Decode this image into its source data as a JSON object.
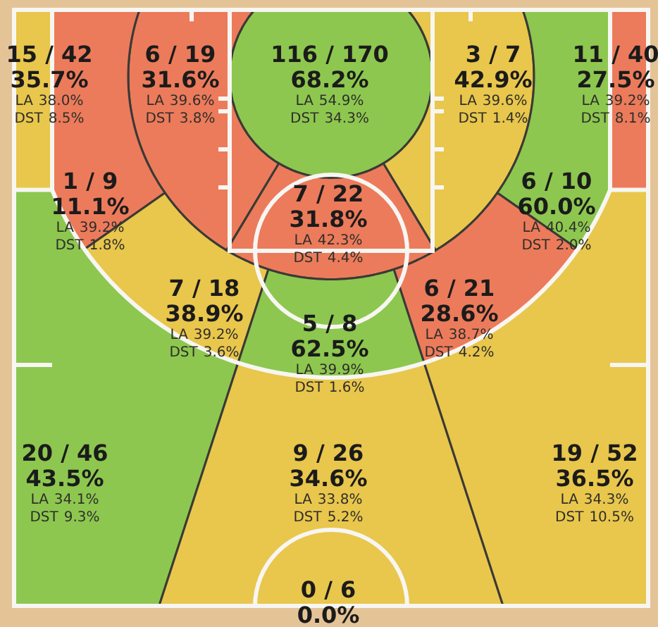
{
  "chart_data": {
    "type": "other",
    "categories": [
      "15 / 42",
      "6 / 19",
      "116 / 170",
      "3 / 7",
      "11 / 40",
      "1 / 9",
      "6 / 10",
      "7 / 22",
      "7 / 18",
      "6 / 21",
      "5 / 8",
      "20 / 46",
      "9 / 26",
      "19 / 52",
      "0 / 6"
    ],
    "series": [
      {
        "colors": [
          "#e9c64c",
          "#ec7b5b",
          "#8dc74f",
          "#e9c64c",
          "#ec7b5b",
          "#ec7b5b",
          "#8dc74f",
          "#ec7b5b",
          "#e9c64c",
          "#ec7b5b",
          "#8dc74f",
          "#8dc74f",
          "#e9c64c",
          "#e9c64c",
          null
        ],
        "values": [
          35.7,
          31.6,
          68.2,
          42.9,
          27.5,
          11.1,
          60.0,
          31.8,
          38.9,
          28.6,
          62.5,
          43.5,
          34.6,
          36.5,
          0.0
        ],
        "value_labels": [
          "35.7%",
          "31.6%",
          "68.2%",
          "42.9%",
          "27.5%",
          "11.1%",
          "60.0%",
          "31.8%",
          "38.9%",
          "28.6%",
          "62.5%",
          "43.5%",
          "34.6%",
          "36.5%",
          "0.0%"
        ]
      },
      {
        "name": "LA",
        "values": [
          38.0,
          39.6,
          54.9,
          39.6,
          39.2,
          39.2,
          40.4,
          42.3,
          39.2,
          38.7,
          39.9,
          34.1,
          33.8,
          34.3,
          null
        ],
        "value_labels": [
          "38.0%",
          "39.6%",
          "54.9%",
          "39.6%",
          "39.2%",
          "39.2%",
          "40.4%",
          "42.3%",
          "39.2%",
          "38.7%",
          "39.9%",
          "34.1%",
          "33.8%",
          "34.3%",
          null
        ]
      },
      {
        "name": "DST",
        "values": [
          8.5,
          3.8,
          34.3,
          1.4,
          8.1,
          1.8,
          2.0,
          4.4,
          3.6,
          4.2,
          1.6,
          9.3,
          5.2,
          10.5,
          null
        ],
        "value_labels": [
          "8.5%",
          "3.8%",
          "34.3%",
          "1.4%",
          "8.1%",
          "1.8%",
          "2.0%",
          "4.4%",
          "3.6%",
          "4.2%",
          "1.6%",
          "9.3%",
          "5.2%",
          "10.5%",
          null
        ]
      }
    ]
  }
}
